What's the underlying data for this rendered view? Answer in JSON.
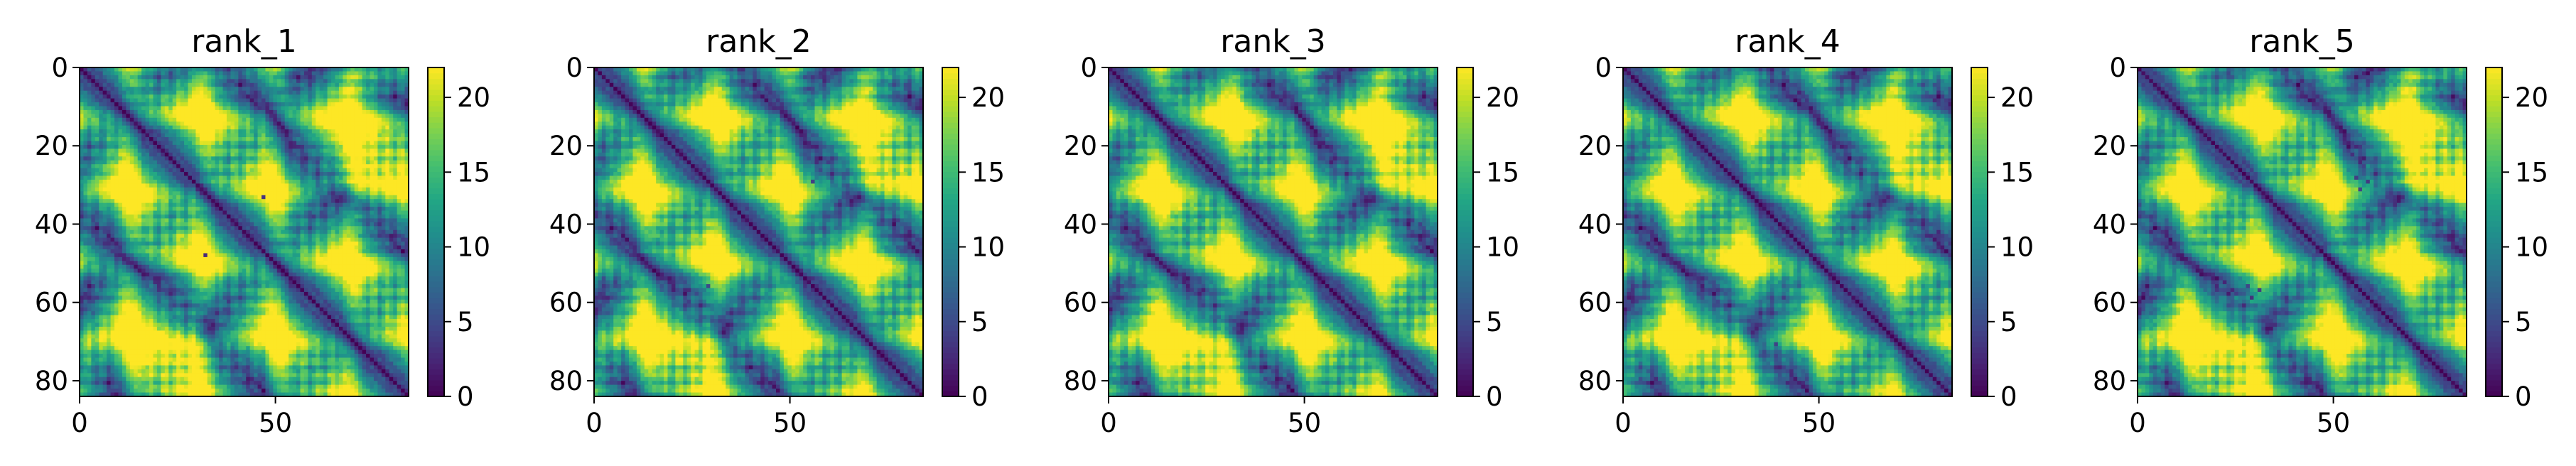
{
  "chart_data": [
    {
      "type": "heatmap",
      "title": "rank_1",
      "matrix_size": 85,
      "xticks": [
        0,
        50
      ],
      "yticks": [
        0,
        20,
        40,
        60,
        80
      ],
      "xlim": [
        0,
        84
      ],
      "ylim": [
        84,
        0
      ],
      "colorbar": {
        "ticks": [
          0,
          5,
          10,
          15,
          20
        ],
        "range": [
          0,
          22
        ],
        "colormap": "viridis"
      },
      "seed": 11,
      "outliers": [
        [
          33,
          47
        ],
        [
          48,
          32
        ]
      ]
    },
    {
      "type": "heatmap",
      "title": "rank_2",
      "matrix_size": 85,
      "xticks": [
        0,
        50
      ],
      "yticks": [
        0,
        20,
        40,
        60,
        80
      ],
      "xlim": [
        0,
        84
      ],
      "ylim": [
        84,
        0
      ],
      "colorbar": {
        "ticks": [
          0,
          5,
          10,
          15,
          20
        ],
        "range": [
          0,
          22
        ],
        "colormap": "viridis"
      },
      "seed": 23,
      "outliers": [
        [
          29,
          56
        ],
        [
          56,
          29
        ]
      ]
    },
    {
      "type": "heatmap",
      "title": "rank_3",
      "matrix_size": 85,
      "xticks": [
        0,
        50
      ],
      "yticks": [
        0,
        20,
        40,
        60,
        80
      ],
      "xlim": [
        0,
        84
      ],
      "ylim": [
        84,
        0
      ],
      "colorbar": {
        "ticks": [
          0,
          5,
          10,
          15,
          20
        ],
        "range": [
          0,
          22
        ],
        "colormap": "viridis"
      },
      "seed": 37,
      "outliers": []
    },
    {
      "type": "heatmap",
      "title": "rank_4",
      "matrix_size": 85,
      "xticks": [
        0,
        50
      ],
      "yticks": [
        0,
        20,
        40,
        60,
        80
      ],
      "xlim": [
        0,
        84
      ],
      "ylim": [
        84,
        0
      ],
      "colorbar": {
        "ticks": [
          0,
          5,
          10,
          15,
          20
        ],
        "range": [
          0,
          22
        ],
        "colormap": "viridis"
      },
      "seed": 41,
      "outliers": [
        [
          71,
          39
        ]
      ]
    },
    {
      "type": "heatmap",
      "title": "rank_5",
      "matrix_size": 85,
      "xticks": [
        0,
        50
      ],
      "yticks": [
        0,
        20,
        40,
        60,
        80
      ],
      "xlim": [
        0,
        84
      ],
      "ylim": [
        84,
        0
      ],
      "colorbar": {
        "ticks": [
          0,
          5,
          10,
          15,
          20
        ],
        "range": [
          0,
          22
        ],
        "colormap": "viridis"
      },
      "seed": 53,
      "outliers": [
        [
          22,
          55
        ],
        [
          23,
          57
        ],
        [
          25,
          58
        ],
        [
          28,
          56
        ],
        [
          29,
          59
        ],
        [
          31,
          57
        ],
        [
          55,
          22
        ],
        [
          57,
          23
        ],
        [
          58,
          25
        ],
        [
          56,
          28
        ],
        [
          59,
          29
        ],
        [
          57,
          31
        ]
      ]
    }
  ]
}
